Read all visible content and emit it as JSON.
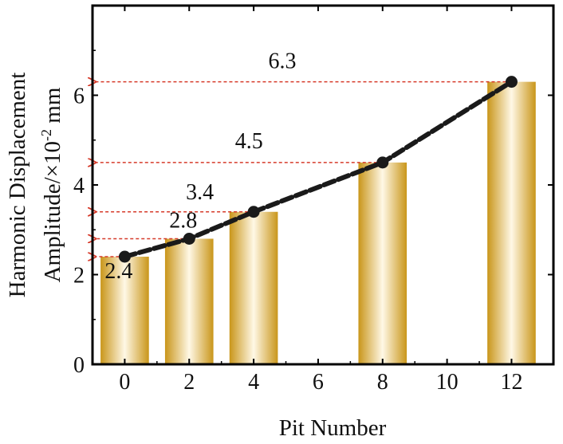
{
  "chart_data": {
    "type": "bar",
    "title": "",
    "xlabel": "Pit Number",
    "ylabel_line1": "Harmonic Displacement",
    "ylabel_line2_prefix": "Amplitude/×10",
    "ylabel_line2_exponent": "-2",
    "ylabel_line2_unit": " mm",
    "x": [
      0,
      2,
      4,
      8,
      12
    ],
    "values": [
      2.4,
      2.8,
      3.4,
      4.5,
      6.3
    ],
    "data_labels": [
      "2.4",
      "2.8",
      "3.4",
      "4.5",
      "6.3"
    ],
    "xticks": [
      0,
      2,
      4,
      6,
      8,
      10,
      12
    ],
    "yticks": [
      0,
      2,
      4,
      6
    ],
    "xlim": [
      -1,
      13.3
    ],
    "ylim": [
      0,
      8
    ],
    "grid": false,
    "series": [
      {
        "type": "bar",
        "values": [
          2.4,
          2.8,
          3.4,
          4.5,
          6.3
        ]
      },
      {
        "type": "line",
        "style": "dashed-with-markers",
        "values": [
          2.4,
          2.8,
          3.4,
          4.5,
          6.3
        ]
      }
    ],
    "colors": {
      "bar_dark": "#c9961a",
      "bar_light": "#fff8e6",
      "line": "#1a1a1a",
      "arrow": "#d63a2a",
      "axis": "#000000"
    }
  }
}
